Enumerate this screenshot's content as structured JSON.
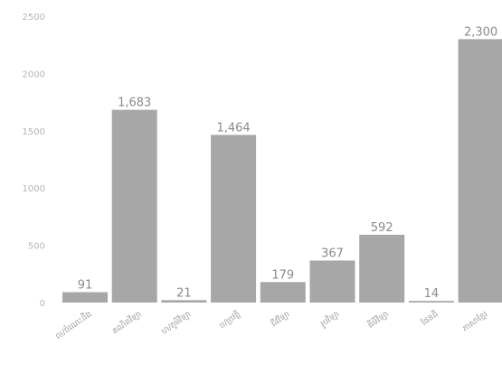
{
  "chart_data": {
    "type": "bar",
    "categories": [
      "ល/ចំណេះដឹង",
      "គណិតវិទ្យា",
      "ហ/ភូមិវិទ្យា",
      "ប/ប្រវត្តិ",
      "ជីវវិទ្យា",
      "រូបវិទ្យា",
      "គីមីវិទ្យា",
      "ផែនដី",
      "ភាសាខ្មែរ"
    ],
    "values": [
      91,
      1683,
      21,
      1464,
      179,
      367,
      592,
      14,
      2300
    ],
    "value_labels": [
      "91",
      "1,683",
      "21",
      "1,464",
      "179",
      "367",
      "592",
      "14",
      "2,300"
    ],
    "y_ticks": [
      0,
      500,
      1000,
      1500,
      2000,
      2500
    ],
    "y_tick_labels": [
      "0",
      "500",
      "1000",
      "1500",
      "2000",
      "2500"
    ],
    "ylim": [
      0,
      2500
    ],
    "grid": false,
    "legend": "none",
    "title": "",
    "xlabel": "",
    "ylabel": "",
    "bar_color": "#a7a7a7"
  }
}
